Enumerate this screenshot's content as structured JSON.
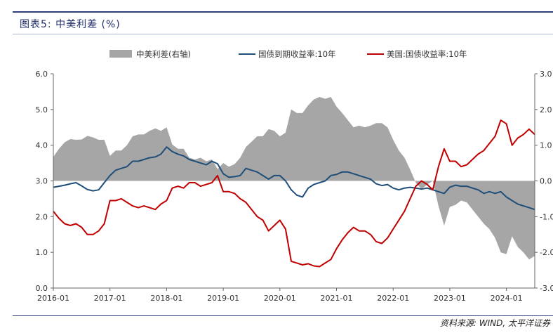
{
  "figure": {
    "title": "图表5: 中美利差 (%)",
    "source": "资料来源: WIND, 太平洋证券"
  },
  "chart_data": {
    "type": "line",
    "xlabel": "",
    "ylabel": "",
    "x_ticks": [
      "2016-01",
      "2017-01",
      "2018-01",
      "2019-01",
      "2020-01",
      "2021-01",
      "2022-01",
      "2023-01",
      "2024-01"
    ],
    "y_left": {
      "ticks": [
        "0.0",
        "1.0",
        "2.0",
        "3.0",
        "4.0",
        "5.0",
        "6.0"
      ],
      "range": [
        0,
        6
      ]
    },
    "y_right": {
      "ticks": [
        "-3.0",
        "-2.0",
        "-1.0",
        "0.0",
        "1.0",
        "2.0",
        "3.0"
      ],
      "range": [
        -3,
        3
      ]
    },
    "legend": [
      "中美利差(右轴)",
      "国债到期收益率:10年",
      "美国:国债收益率:10年"
    ],
    "colors": {
      "spread": "#a6a6a6",
      "china": "#1f4e79",
      "us": "#c00000"
    },
    "x": [
      2016.0,
      2016.1,
      2016.2,
      2016.3,
      2016.4,
      2016.5,
      2016.6,
      2016.7,
      2016.8,
      2016.9,
      2017.0,
      2017.1,
      2017.2,
      2017.3,
      2017.4,
      2017.5,
      2017.6,
      2017.7,
      2017.8,
      2017.9,
      2018.0,
      2018.1,
      2018.2,
      2018.3,
      2018.4,
      2018.5,
      2018.6,
      2018.7,
      2018.8,
      2018.9,
      2019.0,
      2019.1,
      2019.2,
      2019.3,
      2019.4,
      2019.5,
      2019.6,
      2019.7,
      2019.8,
      2019.9,
      2020.0,
      2020.1,
      2020.2,
      2020.3,
      2020.4,
      2020.5,
      2020.6,
      2020.7,
      2020.8,
      2020.9,
      2021.0,
      2021.1,
      2021.2,
      2021.3,
      2021.4,
      2021.5,
      2021.6,
      2021.7,
      2021.8,
      2021.9,
      2022.0,
      2022.1,
      2022.2,
      2022.3,
      2022.4,
      2022.5,
      2022.6,
      2022.7,
      2022.8,
      2022.9,
      2023.0,
      2023.1,
      2023.2,
      2023.3,
      2023.4,
      2023.5,
      2023.6,
      2023.7,
      2023.8,
      2023.9,
      2024.0,
      2024.1,
      2024.2,
      2024.3,
      2024.4,
      2024.5
    ],
    "series": [
      {
        "name": "国债到期收益率:10年",
        "axis": "left",
        "values": [
          2.82,
          2.85,
          2.88,
          2.92,
          2.95,
          2.86,
          2.76,
          2.72,
          2.75,
          2.95,
          3.15,
          3.3,
          3.35,
          3.4,
          3.55,
          3.55,
          3.6,
          3.65,
          3.67,
          3.75,
          3.95,
          3.82,
          3.75,
          3.7,
          3.6,
          3.55,
          3.5,
          3.45,
          3.55,
          3.48,
          3.2,
          3.1,
          3.12,
          3.15,
          3.35,
          3.3,
          3.25,
          3.15,
          3.05,
          3.15,
          3.15,
          3.0,
          2.75,
          2.6,
          2.55,
          2.8,
          2.9,
          2.95,
          3.0,
          3.15,
          3.18,
          3.25,
          3.25,
          3.2,
          3.15,
          3.1,
          3.05,
          2.92,
          2.87,
          2.9,
          2.8,
          2.75,
          2.8,
          2.82,
          2.8,
          2.77,
          2.8,
          2.75,
          2.7,
          2.65,
          2.82,
          2.88,
          2.85,
          2.85,
          2.8,
          2.75,
          2.65,
          2.7,
          2.65,
          2.7,
          2.55,
          2.45,
          2.35,
          2.3,
          2.25,
          2.2
        ]
      },
      {
        "name": "美国:国债收益率:10年",
        "axis": "left",
        "values": [
          2.15,
          1.95,
          1.8,
          1.75,
          1.8,
          1.7,
          1.5,
          1.5,
          1.6,
          1.8,
          2.45,
          2.45,
          2.5,
          2.4,
          2.3,
          2.25,
          2.3,
          2.25,
          2.2,
          2.35,
          2.45,
          2.8,
          2.85,
          2.8,
          2.95,
          2.95,
          2.85,
          2.9,
          2.95,
          3.15,
          2.7,
          2.7,
          2.65,
          2.5,
          2.4,
          2.2,
          2.0,
          1.9,
          1.6,
          1.75,
          1.9,
          1.65,
          0.75,
          0.7,
          0.65,
          0.68,
          0.62,
          0.6,
          0.7,
          0.8,
          1.1,
          1.35,
          1.55,
          1.7,
          1.6,
          1.6,
          1.5,
          1.3,
          1.25,
          1.4,
          1.65,
          1.9,
          2.15,
          2.5,
          2.85,
          3.0,
          2.9,
          2.75,
          3.4,
          3.9,
          3.55,
          3.55,
          3.4,
          3.45,
          3.6,
          3.75,
          3.85,
          4.05,
          4.25,
          4.7,
          4.6,
          4.0,
          4.2,
          4.3,
          4.45,
          4.3
        ]
      },
      {
        "name": "中美利差(右轴)",
        "axis": "right",
        "values": [
          0.67,
          0.9,
          1.08,
          1.17,
          1.15,
          1.16,
          1.26,
          1.22,
          1.15,
          1.15,
          0.7,
          0.85,
          0.85,
          1.0,
          1.25,
          1.3,
          1.3,
          1.4,
          1.47,
          1.4,
          1.5,
          1.02,
          0.9,
          0.9,
          0.65,
          0.6,
          0.65,
          0.55,
          0.6,
          0.33,
          0.5,
          0.4,
          0.47,
          0.65,
          0.95,
          1.1,
          1.25,
          1.25,
          1.45,
          1.4,
          1.25,
          1.35,
          2.0,
          1.9,
          1.9,
          2.12,
          2.28,
          2.35,
          2.3,
          2.35,
          2.08,
          1.9,
          1.7,
          1.5,
          1.55,
          1.5,
          1.55,
          1.62,
          1.62,
          1.5,
          1.15,
          0.85,
          0.65,
          0.32,
          -0.05,
          -0.23,
          -0.1,
          0.0,
          -0.7,
          -1.25,
          -0.73,
          -0.67,
          -0.55,
          -0.6,
          -0.8,
          -1.0,
          -1.2,
          -1.35,
          -1.6,
          -2.0,
          -2.05,
          -1.55,
          -1.85,
          -2.0,
          -2.2,
          -2.1
        ]
      }
    ]
  }
}
